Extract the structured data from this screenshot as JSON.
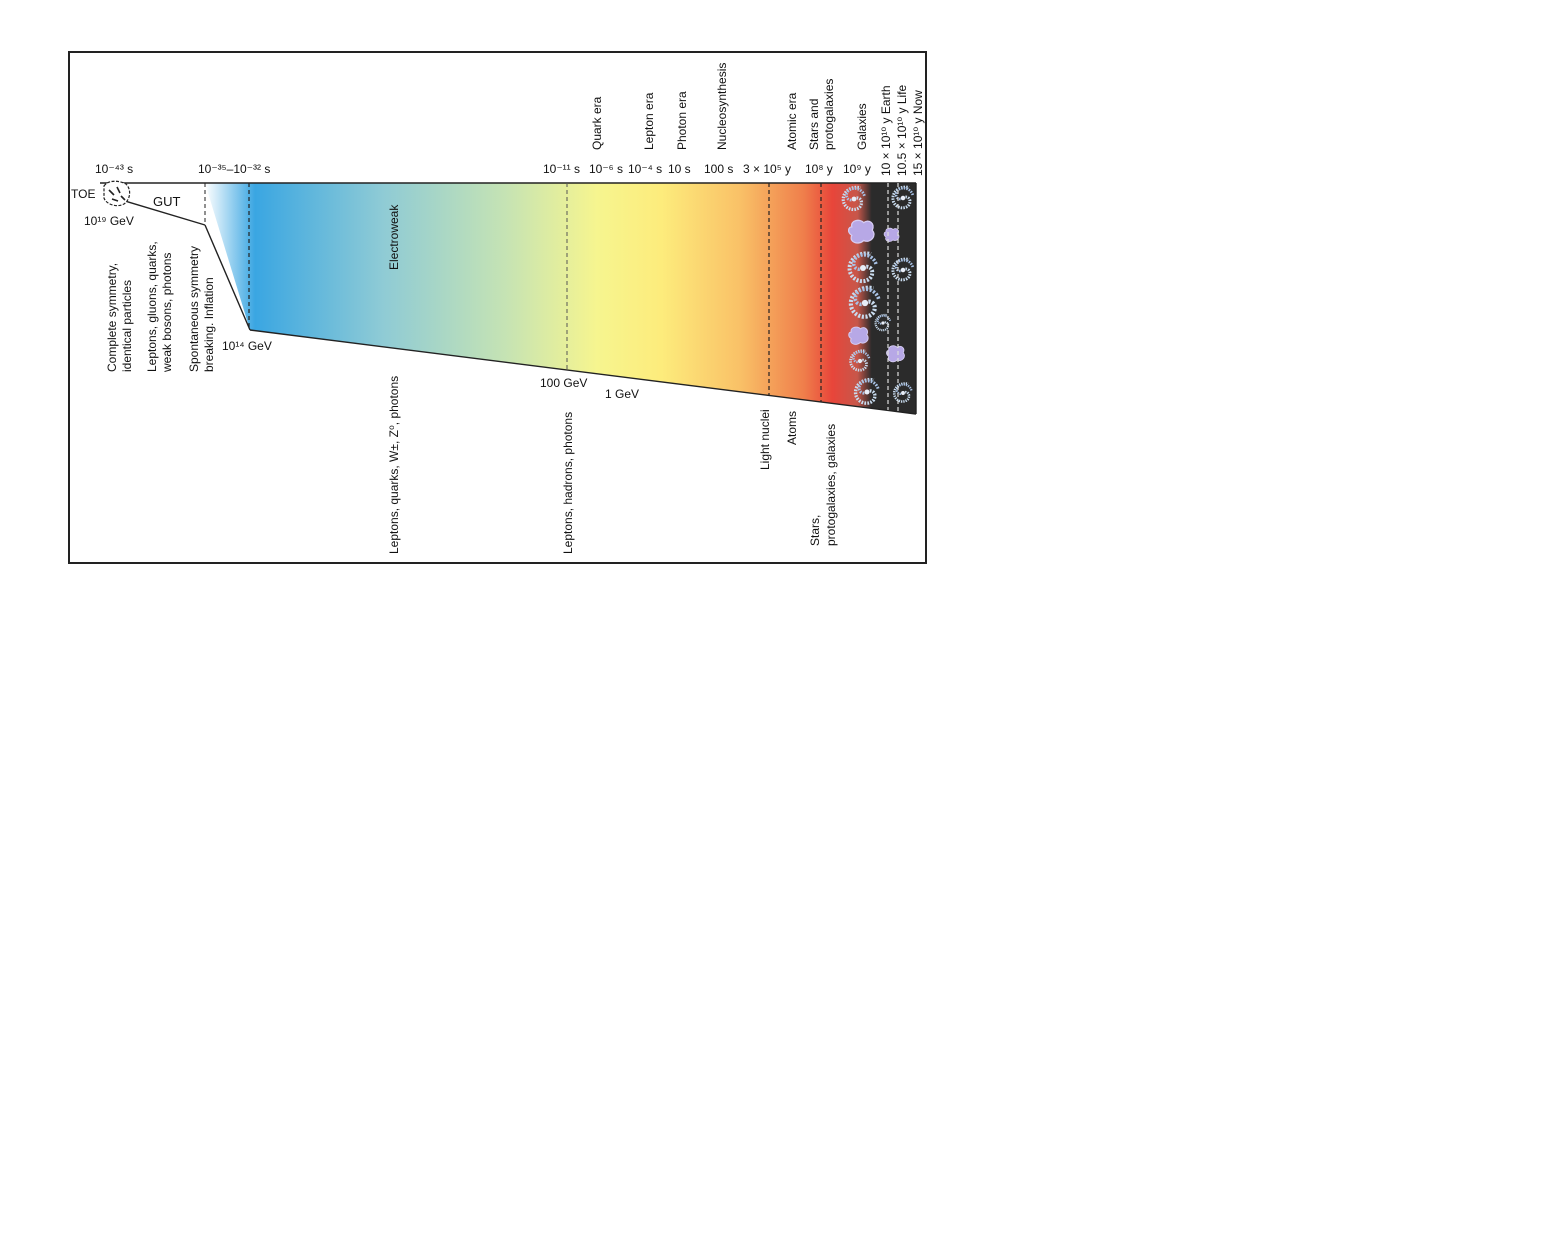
{
  "diagram": {
    "time_labels": {
      "t_toe": "10⁻⁴³ s",
      "t_inflation": "10⁻³⁵–10⁻³² s",
      "t_ew": "10⁻¹¹ s",
      "t_quark": "10⁻⁶ s",
      "t_lepton": "10⁻⁴ s",
      "t_photon": "10 s",
      "t_nucleo": "100 s",
      "t_atomic": "3 × 10⁵ y",
      "t_stars": "10⁸ y",
      "t_galaxies": "10⁹ y"
    },
    "era_labels": {
      "quark_era": "Quark era",
      "lepton_era": "Lepton era",
      "photon_era": "Photon era",
      "nucleosynthesis": "Nucleosynthesis",
      "atomic_era": "Atomic era",
      "stars_and": "Stars and",
      "protogalaxies": "protogalaxies",
      "galaxies": "Galaxies",
      "earth": "10 × 10¹⁰ y Earth",
      "life": "10.5 × 10¹⁰ y Life",
      "now": "15 × 10¹⁰ y Now"
    },
    "band_labels": {
      "toe": "TOE",
      "gut": "GUT",
      "electroweak": "Electroweak"
    },
    "energy_labels": {
      "e_19": "10¹⁹ GeV",
      "e_14": "10¹⁴ GeV",
      "e_100": "100 GeV",
      "e_1": "1  GeV"
    },
    "descriptions": {
      "complete_1": "Complete symmetry,",
      "complete_2": "identical particles",
      "leptons_gluons_1": "Leptons, gluons, quarks,",
      "leptons_gluons_2": "weak bosons, photons",
      "spontaneous_1": "Spontaneous symmetry",
      "spontaneous_2": "breaking. Inflation",
      "leptons_quarks_w": "Leptons, quarks, W±, Z⁰, photons",
      "leptons_hadrons": "Leptons, hadrons, photons",
      "light_nuclei": "Light nuclei",
      "atoms": "Atoms",
      "stars_1": "Stars,",
      "stars_2": "protogalaxies, galaxies"
    },
    "colors": {
      "blue": "#3aa6e2",
      "teal": "#8fcbd5",
      "yellow": "#fbf38c",
      "orange": "#f7a55c",
      "red": "#e8453a",
      "space": "#2b2b2b",
      "galaxy": "#b7a8e6"
    }
  }
}
